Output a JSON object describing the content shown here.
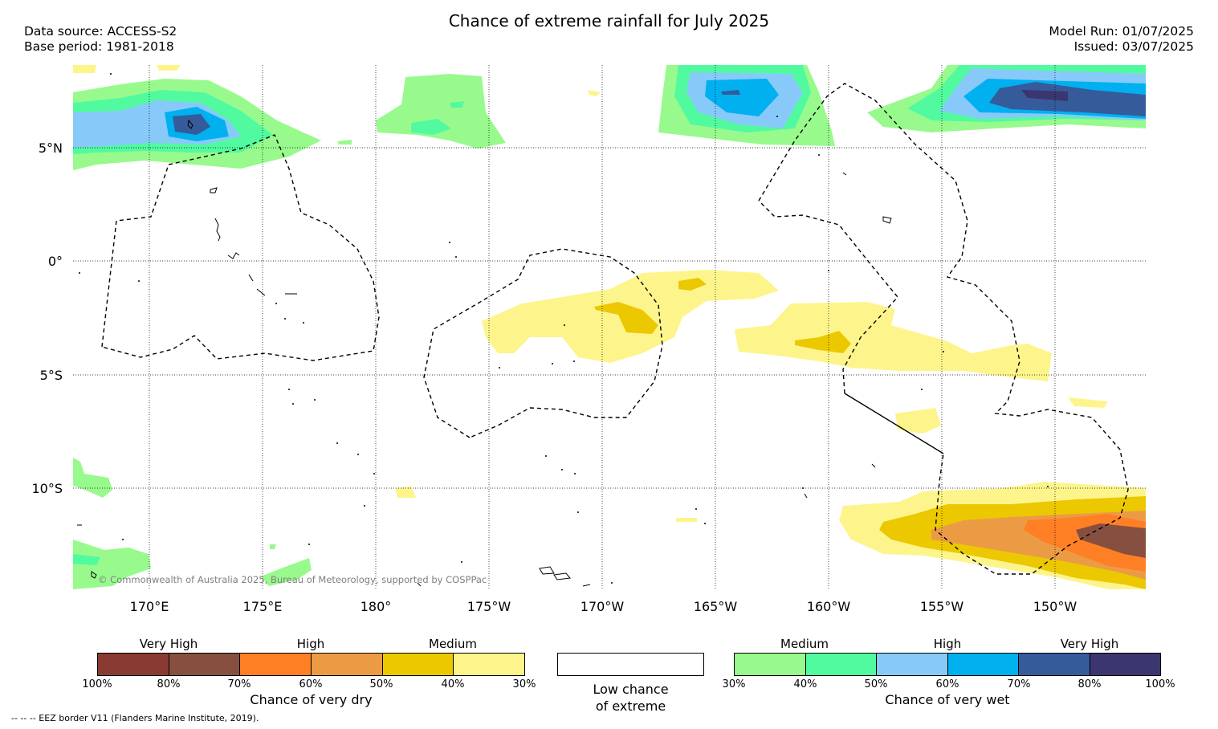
{
  "title": "Chance of extreme rainfall for July 2025",
  "meta_left": {
    "source": "Data source: ACCESS-S2",
    "base": "Base period: 1981-2018"
  },
  "meta_right": {
    "run": "Model Run: 01/07/2025",
    "issued": "Issued: 03/07/2025"
  },
  "map": {
    "lat_labels": [
      "5°N",
      "0°",
      "5°S",
      "10°S"
    ],
    "lon_labels": [
      "170°E",
      "175°E",
      "180°",
      "175°W",
      "170°W",
      "165°W",
      "160°W",
      "155°W",
      "150°W"
    ],
    "copyright": "© Commonwealth of Australia 2025, Bureau of Meteorology, supported by COSPPac"
  },
  "legend_dry": {
    "categories": [
      "Very High",
      "High",
      "Medium"
    ],
    "colors": [
      "#893a33",
      "#874f3f",
      "#ff7f24",
      "#ec9b45",
      "#ecc800",
      "#fdf58c"
    ],
    "ticks": [
      "100%",
      "80%",
      "70%",
      "60%",
      "50%",
      "40%",
      "30%"
    ],
    "title": "Chance of very dry"
  },
  "legend_low": {
    "title_line1": "Low chance",
    "title_line2": "of extreme"
  },
  "legend_wet": {
    "categories": [
      "Medium",
      "High",
      "Very High"
    ],
    "colors": [
      "#98fa8d",
      "#52fa9f",
      "#87cafa",
      "#00b0ef",
      "#365b9a",
      "#3b3570"
    ],
    "ticks": [
      "30%",
      "40%",
      "50%",
      "60%",
      "70%",
      "80%",
      "100%"
    ],
    "title": "Chance of very wet"
  },
  "eez_note": "--  --  -- EEZ border V11 (Flanders Marine Institute, 2019)."
}
